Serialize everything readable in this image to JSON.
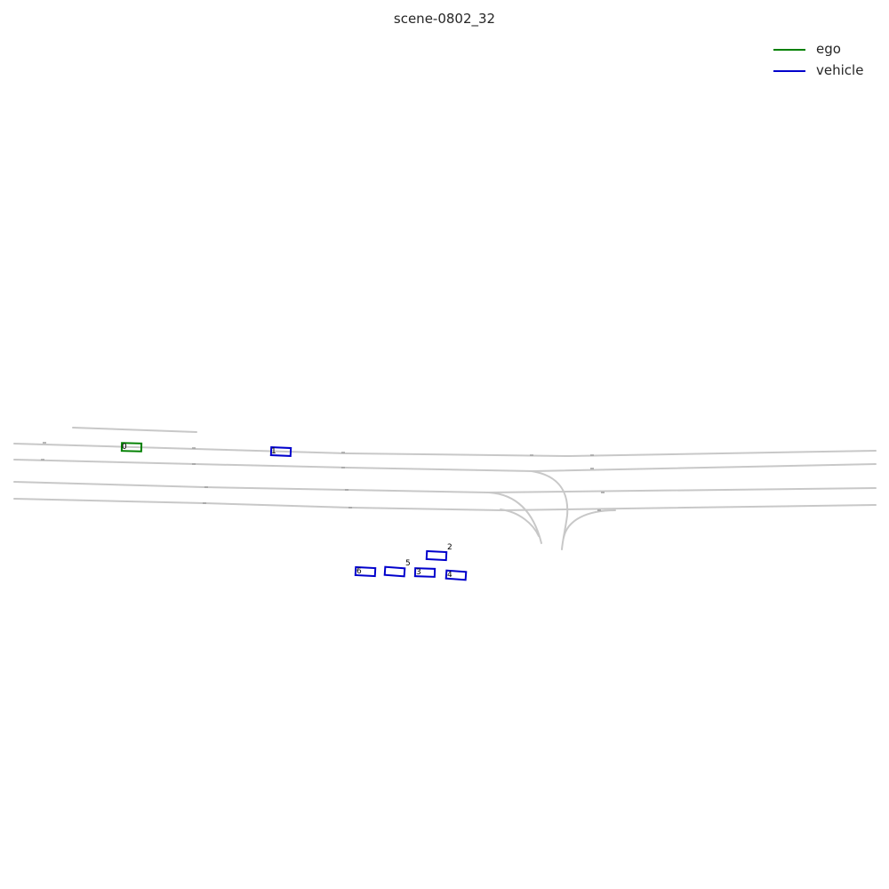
{
  "title": "scene-0802_32",
  "legend": [
    {
      "label": "ego",
      "color": "#008000"
    },
    {
      "label": "vehicle",
      "color": "#0000cc"
    }
  ],
  "colors": {
    "lane": "#c8c8c8",
    "lane_tick": "#a0a0a0"
  },
  "agents": [
    {
      "id": "0",
      "type": "ego"
    },
    {
      "id": "1",
      "type": "vehicle"
    },
    {
      "id": "2",
      "type": "vehicle"
    },
    {
      "id": "3",
      "type": "vehicle"
    },
    {
      "id": "4",
      "type": "vehicle"
    },
    {
      "id": "5",
      "type": "vehicle"
    },
    {
      "id": "6",
      "type": "vehicle"
    }
  ]
}
